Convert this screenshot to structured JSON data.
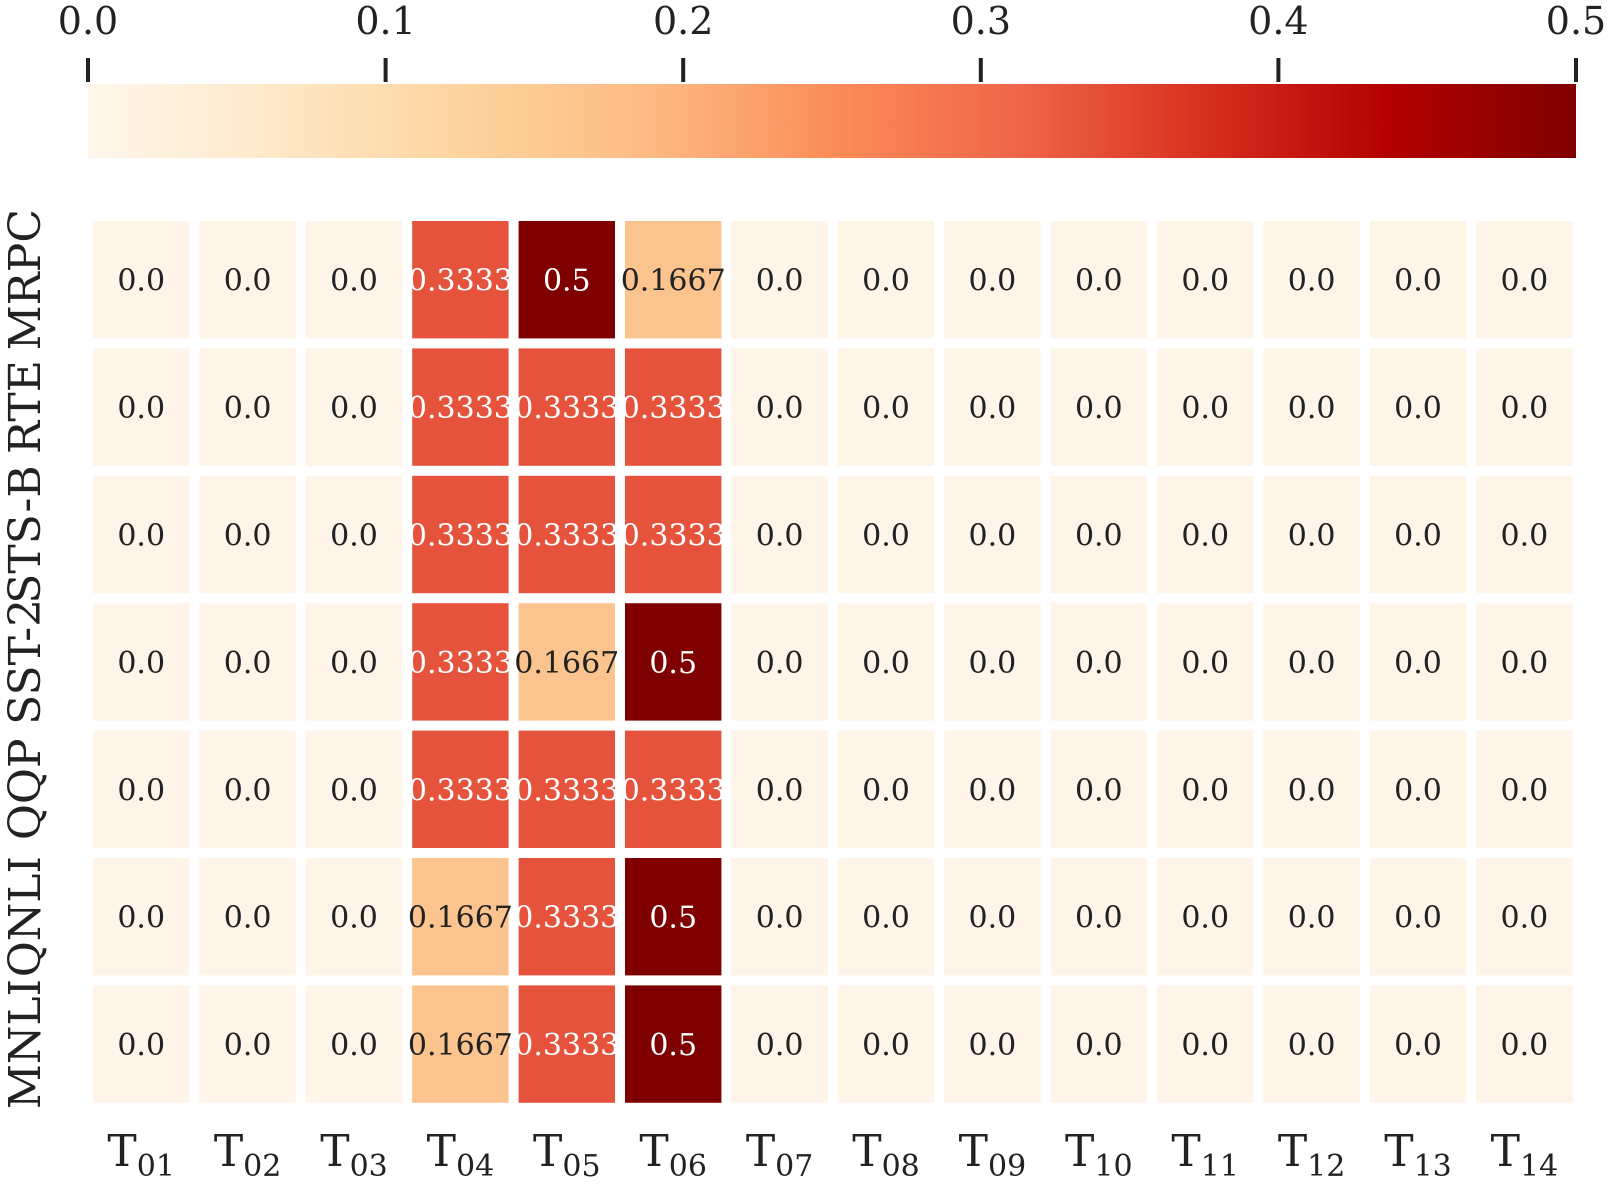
{
  "chart_data": {
    "type": "heatmap",
    "rows": [
      "MRPC",
      "RTE",
      "STS-B",
      "SST-2",
      "QQP",
      "QNLI",
      "MNLI"
    ],
    "columns": [
      {
        "base": "T",
        "sub": "01"
      },
      {
        "base": "T",
        "sub": "02"
      },
      {
        "base": "T",
        "sub": "03"
      },
      {
        "base": "T",
        "sub": "04"
      },
      {
        "base": "T",
        "sub": "05"
      },
      {
        "base": "T",
        "sub": "06"
      },
      {
        "base": "T",
        "sub": "07"
      },
      {
        "base": "T",
        "sub": "08"
      },
      {
        "base": "T",
        "sub": "09"
      },
      {
        "base": "T",
        "sub": "10"
      },
      {
        "base": "T",
        "sub": "11"
      },
      {
        "base": "T",
        "sub": "12"
      },
      {
        "base": "T",
        "sub": "13"
      },
      {
        "base": "T",
        "sub": "14"
      }
    ],
    "values": [
      [
        0.0,
        0.0,
        0.0,
        0.3333,
        0.5,
        0.1667,
        0.0,
        0.0,
        0.0,
        0.0,
        0.0,
        0.0,
        0.0,
        0.0
      ],
      [
        0.0,
        0.0,
        0.0,
        0.3333,
        0.3333,
        0.3333,
        0.0,
        0.0,
        0.0,
        0.0,
        0.0,
        0.0,
        0.0,
        0.0
      ],
      [
        0.0,
        0.0,
        0.0,
        0.3333,
        0.3333,
        0.3333,
        0.0,
        0.0,
        0.0,
        0.0,
        0.0,
        0.0,
        0.0,
        0.0
      ],
      [
        0.0,
        0.0,
        0.0,
        0.3333,
        0.1667,
        0.5,
        0.0,
        0.0,
        0.0,
        0.0,
        0.0,
        0.0,
        0.0,
        0.0
      ],
      [
        0.0,
        0.0,
        0.0,
        0.3333,
        0.3333,
        0.3333,
        0.0,
        0.0,
        0.0,
        0.0,
        0.0,
        0.0,
        0.0,
        0.0
      ],
      [
        0.0,
        0.0,
        0.0,
        0.1667,
        0.3333,
        0.5,
        0.0,
        0.0,
        0.0,
        0.0,
        0.0,
        0.0,
        0.0,
        0.0
      ],
      [
        0.0,
        0.0,
        0.0,
        0.1667,
        0.3333,
        0.5,
        0.0,
        0.0,
        0.0,
        0.0,
        0.0,
        0.0,
        0.0,
        0.0
      ]
    ],
    "cell_labels": [
      [
        "0.0",
        "0.0",
        "0.0",
        "0.3333",
        "0.5",
        "0.1667",
        "0.0",
        "0.0",
        "0.0",
        "0.0",
        "0.0",
        "0.0",
        "0.0",
        "0.0"
      ],
      [
        "0.0",
        "0.0",
        "0.0",
        "0.3333",
        "0.3333",
        "0.3333",
        "0.0",
        "0.0",
        "0.0",
        "0.0",
        "0.0",
        "0.0",
        "0.0",
        "0.0"
      ],
      [
        "0.0",
        "0.0",
        "0.0",
        "0.3333",
        "0.3333",
        "0.3333",
        "0.0",
        "0.0",
        "0.0",
        "0.0",
        "0.0",
        "0.0",
        "0.0",
        "0.0"
      ],
      [
        "0.0",
        "0.0",
        "0.0",
        "0.3333",
        "0.1667",
        "0.5",
        "0.0",
        "0.0",
        "0.0",
        "0.0",
        "0.0",
        "0.0",
        "0.0",
        "0.0"
      ],
      [
        "0.0",
        "0.0",
        "0.0",
        "0.3333",
        "0.3333",
        "0.3333",
        "0.0",
        "0.0",
        "0.0",
        "0.0",
        "0.0",
        "0.0",
        "0.0",
        "0.0"
      ],
      [
        "0.0",
        "0.0",
        "0.0",
        "0.1667",
        "0.3333",
        "0.5",
        "0.0",
        "0.0",
        "0.0",
        "0.0",
        "0.0",
        "0.0",
        "0.0",
        "0.0"
      ],
      [
        "0.0",
        "0.0",
        "0.0",
        "0.1667",
        "0.3333",
        "0.5",
        "0.0",
        "0.0",
        "0.0",
        "0.0",
        "0.0",
        "0.0",
        "0.0",
        "0.0"
      ]
    ],
    "colorbar": {
      "range": [
        0.0,
        0.5
      ],
      "ticks": [
        0.0,
        0.1,
        0.2,
        0.3,
        0.4,
        0.5
      ],
      "tick_labels": [
        "0.0",
        "0.1",
        "0.2",
        "0.3",
        "0.4",
        "0.5"
      ],
      "position": "top",
      "colormap": "OrRd",
      "stops": [
        "#fff7ec",
        "#fee8c8",
        "#fdd49e",
        "#fdbb84",
        "#fc8d59",
        "#ef6548",
        "#d7301f",
        "#b30000",
        "#7f0000"
      ]
    },
    "colors": {
      "zero": "#fef4e8",
      "low": "#fbc48e",
      "mid": "#e5533c",
      "high": "#7f0000",
      "dark_text": "#222222",
      "light_text": "#ffffff"
    },
    "grid": false,
    "legend": "none"
  }
}
